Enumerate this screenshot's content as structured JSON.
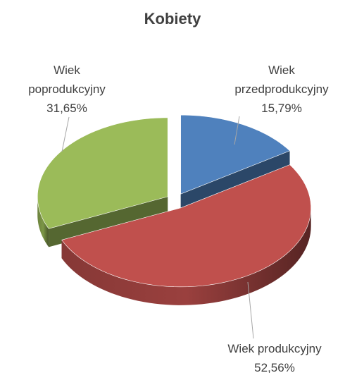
{
  "chart_data": {
    "type": "pie",
    "title": "Kobiety",
    "categories": [
      "Wiek przedprodukcyjny",
      "Wiek produkcyjny",
      "Wiek poprodukcyjny"
    ],
    "values": [
      15.79,
      52.56,
      31.65
    ],
    "value_labels": [
      "15,79%",
      "52,56%",
      "31,65%"
    ],
    "colors": [
      "#4f81bd",
      "#c0504d",
      "#9bbb59"
    ]
  }
}
